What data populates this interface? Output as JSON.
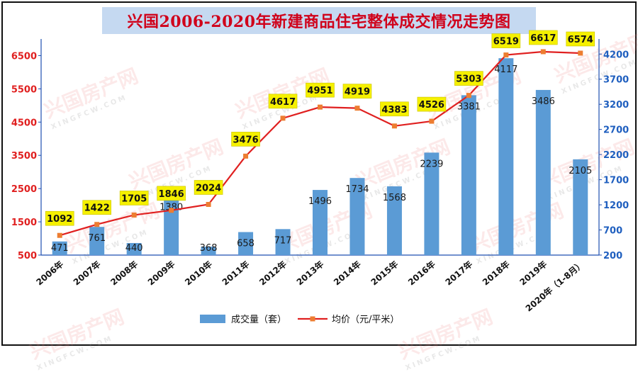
{
  "title": "兴国2006-2020年新建商品住宅整体成交情况走势图",
  "watermark": {
    "cn": "兴国房产网",
    "en": "XINGFCW.COM"
  },
  "colors": {
    "bar": "#5b9bd5",
    "line": "#e02020",
    "marker": "#ed7d31",
    "label_bg": "#f5f000",
    "left_axis_text": "#e02020",
    "right_axis_text": "#1f5fbf"
  },
  "chart_data": {
    "type": "bar",
    "categories": [
      "2006年",
      "2007年",
      "2008年",
      "2009年",
      "2010年",
      "2011年",
      "2012年",
      "2013年",
      "2014年",
      "2015年",
      "2016年",
      "2017年",
      "2018年",
      "2019年",
      "2020年（1-8月）"
    ],
    "series": [
      {
        "name": "成交量（套）",
        "type": "bar",
        "axis": "right",
        "values": [
          471,
          761,
          440,
          1380,
          368,
          658,
          717,
          1496,
          1734,
          1568,
          2239,
          3381,
          4117,
          3486,
          2105
        ]
      },
      {
        "name": "均价（元/平米）",
        "type": "line",
        "axis": "left",
        "values": [
          1092,
          1422,
          1705,
          1846,
          2024,
          3476,
          4617,
          4951,
          4919,
          4383,
          4526,
          5303,
          6519,
          6617,
          6574
        ]
      }
    ],
    "left_axis": {
      "ticks": [
        500,
        1500,
        2500,
        3500,
        4500,
        5500,
        6500
      ],
      "ylim": [
        500,
        7000
      ]
    },
    "right_axis": {
      "ticks": [
        200,
        700,
        1200,
        1700,
        2200,
        2700,
        3200,
        3700,
        4200
      ],
      "ylim": [
        200,
        4500
      ]
    },
    "grid": false,
    "legend_position": "bottom"
  }
}
